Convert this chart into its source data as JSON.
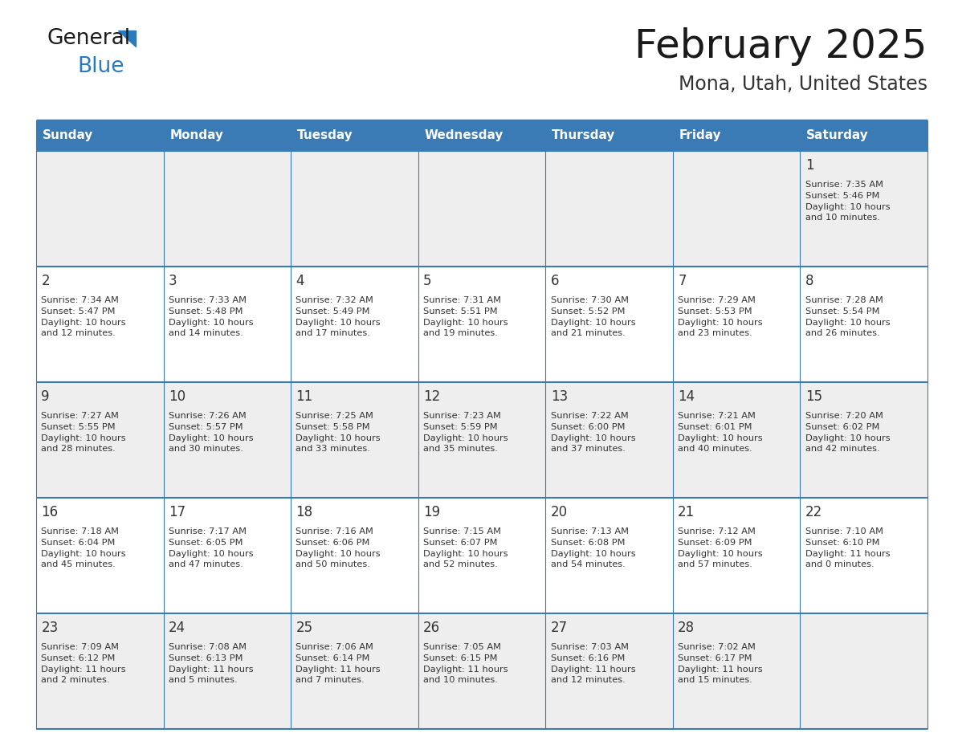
{
  "title": "February 2025",
  "subtitle": "Mona, Utah, United States",
  "header_bg_color": "#3a7ab5",
  "header_text_color": "#ffffff",
  "day_names": [
    "Sunday",
    "Monday",
    "Tuesday",
    "Wednesday",
    "Thursday",
    "Friday",
    "Saturday"
  ],
  "row_bg_light": "#eeeeee",
  "row_bg_white": "#ffffff",
  "cell_border_color": "#3a7ab5",
  "day_num_color": "#333333",
  "info_text_color": "#333333",
  "title_color": "#1a1a1a",
  "subtitle_color": "#333333",
  "logo_color_general": "#1a1a1a",
  "logo_color_blue": "#2a7abf",
  "logo_triangle_color": "#2a7abf",
  "calendar_data": [
    [
      null,
      null,
      null,
      null,
      null,
      null,
      {
        "day": 1,
        "sunrise": "7:35 AM",
        "sunset": "5:46 PM",
        "daylight": "10 hours and 10 minutes."
      }
    ],
    [
      {
        "day": 2,
        "sunrise": "7:34 AM",
        "sunset": "5:47 PM",
        "daylight": "10 hours and 12 minutes."
      },
      {
        "day": 3,
        "sunrise": "7:33 AM",
        "sunset": "5:48 PM",
        "daylight": "10 hours and 14 minutes."
      },
      {
        "day": 4,
        "sunrise": "7:32 AM",
        "sunset": "5:49 PM",
        "daylight": "10 hours and 17 minutes."
      },
      {
        "day": 5,
        "sunrise": "7:31 AM",
        "sunset": "5:51 PM",
        "daylight": "10 hours and 19 minutes."
      },
      {
        "day": 6,
        "sunrise": "7:30 AM",
        "sunset": "5:52 PM",
        "daylight": "10 hours and 21 minutes."
      },
      {
        "day": 7,
        "sunrise": "7:29 AM",
        "sunset": "5:53 PM",
        "daylight": "10 hours and 23 minutes."
      },
      {
        "day": 8,
        "sunrise": "7:28 AM",
        "sunset": "5:54 PM",
        "daylight": "10 hours and 26 minutes."
      }
    ],
    [
      {
        "day": 9,
        "sunrise": "7:27 AM",
        "sunset": "5:55 PM",
        "daylight": "10 hours and 28 minutes."
      },
      {
        "day": 10,
        "sunrise": "7:26 AM",
        "sunset": "5:57 PM",
        "daylight": "10 hours and 30 minutes."
      },
      {
        "day": 11,
        "sunrise": "7:25 AM",
        "sunset": "5:58 PM",
        "daylight": "10 hours and 33 minutes."
      },
      {
        "day": 12,
        "sunrise": "7:23 AM",
        "sunset": "5:59 PM",
        "daylight": "10 hours and 35 minutes."
      },
      {
        "day": 13,
        "sunrise": "7:22 AM",
        "sunset": "6:00 PM",
        "daylight": "10 hours and 37 minutes."
      },
      {
        "day": 14,
        "sunrise": "7:21 AM",
        "sunset": "6:01 PM",
        "daylight": "10 hours and 40 minutes."
      },
      {
        "day": 15,
        "sunrise": "7:20 AM",
        "sunset": "6:02 PM",
        "daylight": "10 hours and 42 minutes."
      }
    ],
    [
      {
        "day": 16,
        "sunrise": "7:18 AM",
        "sunset": "6:04 PM",
        "daylight": "10 hours and 45 minutes."
      },
      {
        "day": 17,
        "sunrise": "7:17 AM",
        "sunset": "6:05 PM",
        "daylight": "10 hours and 47 minutes."
      },
      {
        "day": 18,
        "sunrise": "7:16 AM",
        "sunset": "6:06 PM",
        "daylight": "10 hours and 50 minutes."
      },
      {
        "day": 19,
        "sunrise": "7:15 AM",
        "sunset": "6:07 PM",
        "daylight": "10 hours and 52 minutes."
      },
      {
        "day": 20,
        "sunrise": "7:13 AM",
        "sunset": "6:08 PM",
        "daylight": "10 hours and 54 minutes."
      },
      {
        "day": 21,
        "sunrise": "7:12 AM",
        "sunset": "6:09 PM",
        "daylight": "10 hours and 57 minutes."
      },
      {
        "day": 22,
        "sunrise": "7:10 AM",
        "sunset": "6:10 PM",
        "daylight": "11 hours and 0 minutes."
      }
    ],
    [
      {
        "day": 23,
        "sunrise": "7:09 AM",
        "sunset": "6:12 PM",
        "daylight": "11 hours and 2 minutes."
      },
      {
        "day": 24,
        "sunrise": "7:08 AM",
        "sunset": "6:13 PM",
        "daylight": "11 hours and 5 minutes."
      },
      {
        "day": 25,
        "sunrise": "7:06 AM",
        "sunset": "6:14 PM",
        "daylight": "11 hours and 7 minutes."
      },
      {
        "day": 26,
        "sunrise": "7:05 AM",
        "sunset": "6:15 PM",
        "daylight": "11 hours and 10 minutes."
      },
      {
        "day": 27,
        "sunrise": "7:03 AM",
        "sunset": "6:16 PM",
        "daylight": "11 hours and 12 minutes."
      },
      {
        "day": 28,
        "sunrise": "7:02 AM",
        "sunset": "6:17 PM",
        "daylight": "11 hours and 15 minutes."
      },
      null
    ]
  ]
}
